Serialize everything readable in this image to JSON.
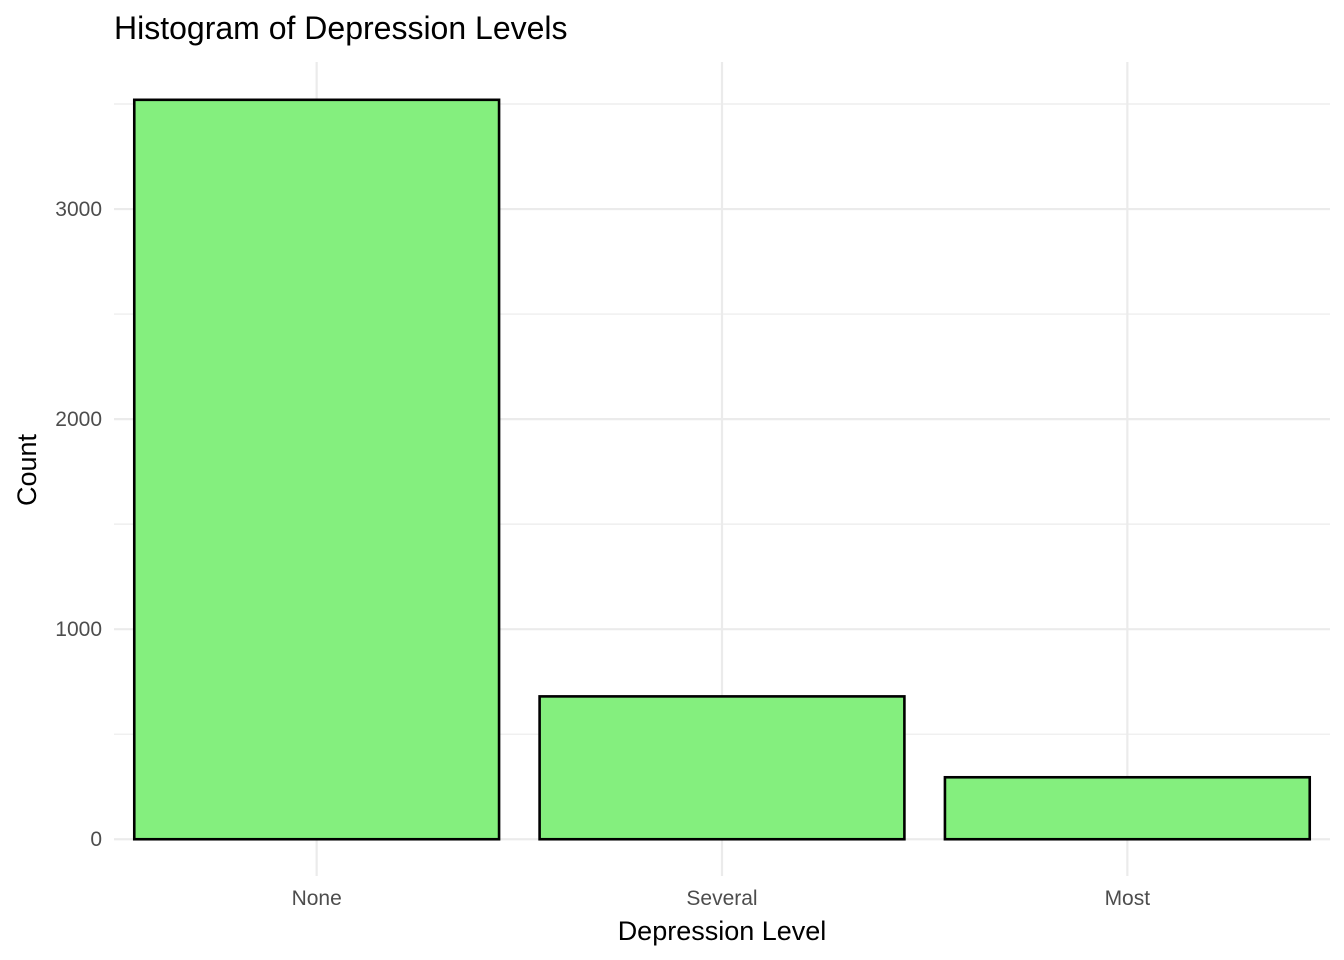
{
  "chart_data": {
    "type": "bar",
    "title": "Histogram of Depression Levels",
    "xlabel": "Depression Level",
    "ylabel": "Count",
    "categories": [
      "None",
      "Several",
      "Most"
    ],
    "values": [
      3520,
      680,
      295
    ],
    "ylim": [
      -175,
      3700
    ],
    "yticks": [
      0,
      1000,
      2000,
      3000
    ],
    "ytick_labels": [
      "0",
      "1000",
      "2000",
      "3000"
    ],
    "y_minor_ticks": [
      500,
      1500,
      2500,
      3500
    ],
    "grid": true,
    "legend": "none",
    "colors": {
      "bar_fill": "#84EF7E",
      "bar_stroke": "#000000",
      "grid": "#EBEBEB",
      "tick_text": "#4D4D4D"
    }
  }
}
